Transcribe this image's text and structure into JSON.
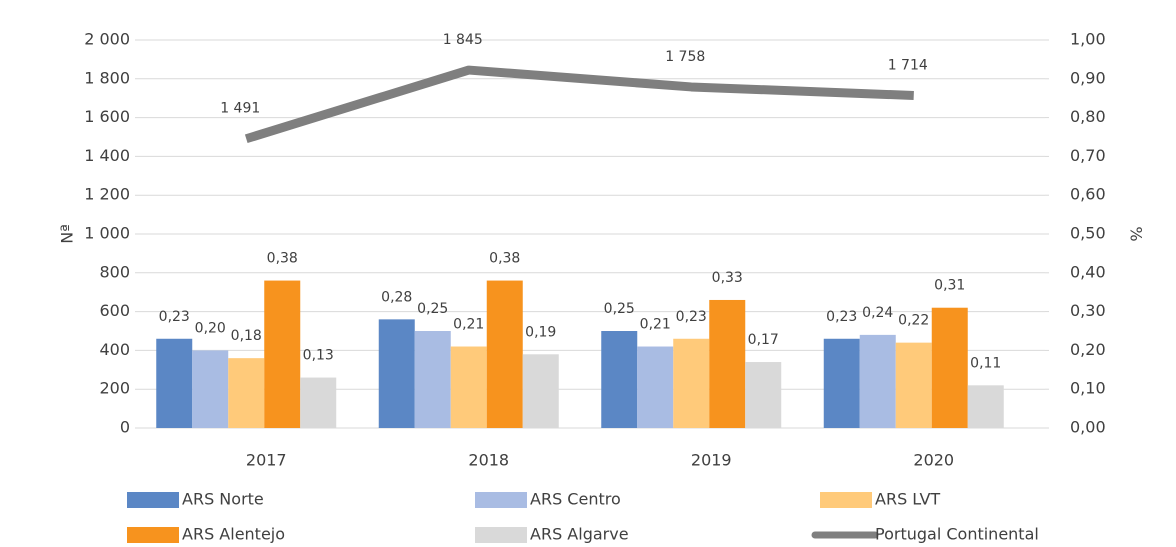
{
  "chart_data": {
    "type": "bar_line",
    "categories": [
      "2017",
      "2018",
      "2019",
      "2020"
    ],
    "ylabel": "Nª",
    "y2label": "%",
    "ylim": [
      0,
      2000
    ],
    "yticks": [
      0,
      200,
      400,
      600,
      800,
      {
        "value": 1000,
        "label": "1 000"
      },
      {
        "value": 1200,
        "label": "1 200"
      },
      {
        "value": 1400,
        "label": "1 400"
      },
      {
        "value": 1600,
        "label": "1 600"
      },
      {
        "value": 1800,
        "label": "1 800"
      },
      {
        "value": 2000,
        "label": "2 000"
      }
    ],
    "y2lim": [
      0,
      1
    ],
    "y2ticks": [
      {
        "value": 0,
        "label": "0,00"
      },
      {
        "value": 0.1,
        "label": "0,10"
      },
      {
        "value": 0.2,
        "label": "0,20"
      },
      {
        "value": 0.3,
        "label": "0,30"
      },
      {
        "value": 0.4,
        "label": "0,40"
      },
      {
        "value": 0.5,
        "label": "0,50"
      },
      {
        "value": 0.6,
        "label": "0,60"
      },
      {
        "value": 0.7,
        "label": "0,70"
      },
      {
        "value": 0.8,
        "label": "0,80"
      },
      {
        "value": 0.9,
        "label": "0,90"
      },
      {
        "value": 1,
        "label": "1,00"
      }
    ],
    "grid": true,
    "legend": "bottom",
    "series": [
      {
        "name": "ARS Norte",
        "type": "bar",
        "axis": "y2",
        "color": "#5b87c5",
        "values": [
          0.23,
          0.28,
          0.25,
          0.23
        ],
        "value_labels": [
          "0,23",
          "0,28",
          "0,25",
          "0,23"
        ]
      },
      {
        "name": "ARS Centro",
        "type": "bar",
        "axis": "y2",
        "color": "#a9bce3",
        "values": [
          0.2,
          0.25,
          0.21,
          0.24
        ],
        "value_labels": [
          "0,20",
          "0,25",
          "0,21",
          "0,24"
        ]
      },
      {
        "name": "ARS LVT",
        "type": "bar",
        "axis": "y2",
        "color": "#ffca7a",
        "values": [
          0.18,
          0.21,
          0.23,
          0.22
        ],
        "value_labels": [
          "0,18",
          "0,21",
          "0,23",
          "0,22"
        ]
      },
      {
        "name": "ARS Alentejo",
        "type": "bar",
        "axis": "y2",
        "color": "#f7931e",
        "values": [
          0.38,
          0.38,
          0.33,
          0.31
        ],
        "value_labels": [
          "0,38",
          "0,38",
          "0,33",
          "0,31"
        ]
      },
      {
        "name": "ARS Algarve",
        "type": "bar",
        "axis": "y2",
        "color": "#d9d9d9",
        "values": [
          0.13,
          0.19,
          0.17,
          0.11
        ],
        "value_labels": [
          "0,13",
          "0,19",
          "0,17",
          "0,11"
        ]
      },
      {
        "name": "Portugal Continental",
        "type": "line",
        "axis": "y",
        "color": "#7f7f7f",
        "values": [
          1491,
          1845,
          1758,
          1714
        ],
        "value_labels": [
          "1 491",
          "1 845",
          "1 758",
          "1 714"
        ]
      }
    ]
  }
}
